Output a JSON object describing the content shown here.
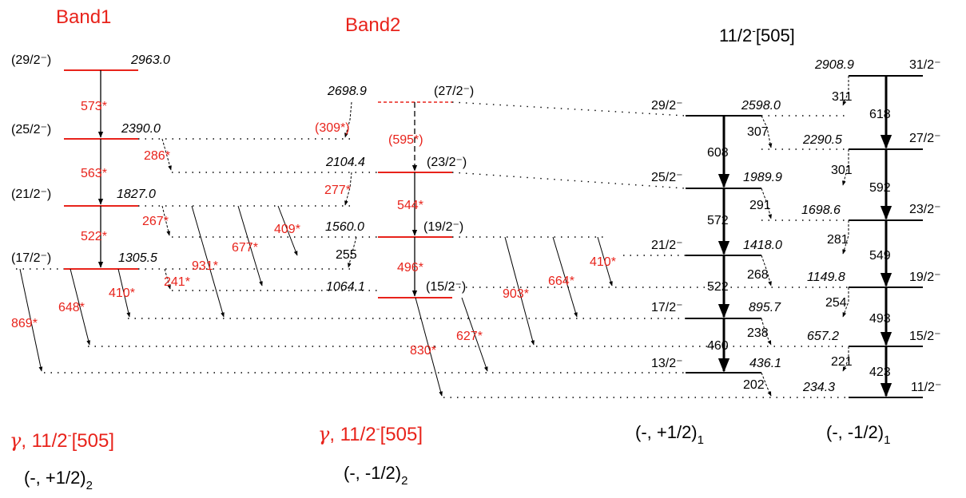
{
  "titles": {
    "band1": "Band1",
    "band2": "Band2",
    "band3_pre": "11/2",
    "band3_sup": "-",
    "band3_post": "[505]"
  },
  "configs": {
    "band1_gamma": "γ",
    "band1_orbital_pre": ", 11/2",
    "band1_orbital_sup": "-",
    "band1_orbital_post": "[505]",
    "band1_sig": "(-, +1/2)",
    "band1_sub": "2",
    "band2_gamma": "γ",
    "band2_orbital_pre": ", 11/2",
    "band2_orbital_sup": "-",
    "band2_orbital_post": "[505]",
    "band2_sig": "(-, -1/2)",
    "band2_sub": "2",
    "band3_sig": "(-, +1/2)",
    "band3_sub": "1",
    "band4_sig": "(-, -1/2)",
    "band4_sub": "1"
  },
  "colors": {
    "red": "#e8231b",
    "black": "#000000"
  },
  "levels": {
    "b1": [
      {
        "spin": "(29/2⁻)",
        "energy": "2963.0"
      },
      {
        "spin": "(25/2⁻)",
        "energy": "2390.0"
      },
      {
        "spin": "(21/2⁻)",
        "energy": "1827.0"
      },
      {
        "spin": "(17/2⁻)",
        "energy": "1305.5"
      }
    ],
    "b2": [
      {
        "spin": "(27/2⁻)",
        "energy": "2698.9"
      },
      {
        "spin": "(23/2⁻)",
        "energy": "2104.4"
      },
      {
        "spin": "(19/2⁻)",
        "energy": "1560.0"
      },
      {
        "spin": "(15/2⁻)",
        "energy": "1064.1"
      }
    ],
    "b3": [
      {
        "spin": "29/2⁻",
        "energy": "2598.0"
      },
      {
        "spin": "25/2⁻",
        "energy": "1989.9"
      },
      {
        "spin": "21/2⁻",
        "energy": "1418.0"
      },
      {
        "spin": "17/2⁻",
        "energy": "895.7"
      },
      {
        "spin": "13/2⁻",
        "energy": "436.1"
      }
    ],
    "b4": [
      {
        "spin": "31/2⁻",
        "energy": "2908.9"
      },
      {
        "spin": "27/2⁻",
        "energy": "2290.5"
      },
      {
        "spin": "23/2⁻",
        "energy": "1698.6"
      },
      {
        "spin": "19/2⁻",
        "energy": "1149.8"
      },
      {
        "spin": "15/2⁻",
        "energy": "657.2"
      },
      {
        "spin": "11/2⁻",
        "energy": "234.3"
      }
    ]
  },
  "gammas": {
    "b1_intra": [
      "573*",
      "563*",
      "522*"
    ],
    "b2_intra": [
      "(595*)",
      "544*",
      "496*"
    ],
    "b3_intra": [
      "608",
      "572",
      "522",
      "460"
    ],
    "b4_intra": [
      "618",
      "592",
      "549",
      "493",
      "423"
    ],
    "b1_out": [
      "869*",
      "648*",
      "931*",
      "677*"
    ],
    "b1_to_b2": [
      "286*",
      "267*",
      "241*",
      "410*"
    ],
    "b2_in": [
      "(309*)",
      "277*",
      "255"
    ],
    "b2_out": [
      "903*",
      "664*",
      "627*",
      "830*",
      "410*",
      "409*"
    ],
    "b3_to_b4": [
      "311",
      "307",
      "301",
      "291",
      "281",
      "268",
      "254",
      "238",
      "221",
      "202"
    ]
  }
}
